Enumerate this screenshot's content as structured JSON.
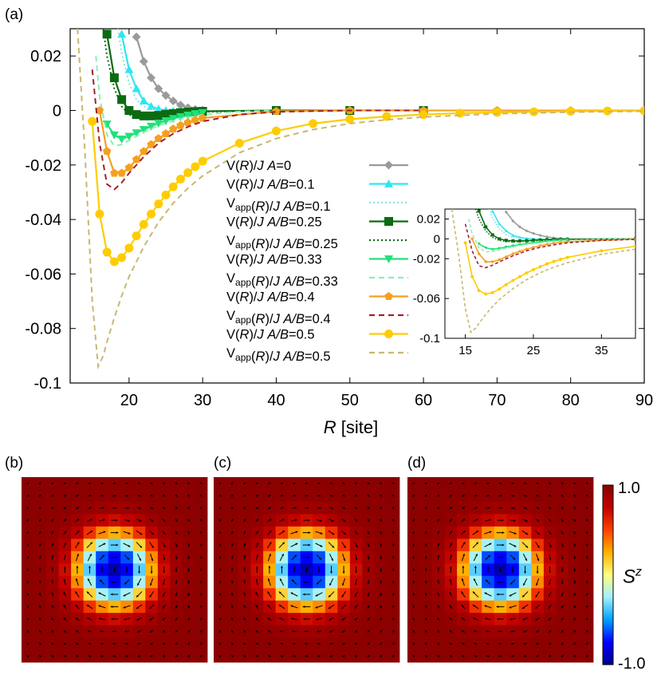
{
  "panel_labels": {
    "a": "(a)",
    "b": "(b)",
    "c": "(c)",
    "d": "(d)"
  },
  "chart_data": [
    {
      "type": "line",
      "xlabel": "R [site]",
      "xlim": [
        12,
        90
      ],
      "ylim": [
        -0.1,
        0.03
      ],
      "xticks": [
        20,
        30,
        40,
        50,
        60,
        70,
        80,
        90
      ],
      "yticks": [
        -0.1,
        -0.08,
        -0.06,
        -0.04,
        -0.02,
        0,
        0.02
      ],
      "ytick_labels": [
        "-0.1",
        "-0.08",
        "-0.06",
        "-0.04",
        "-0.02",
        "0",
        "0.02"
      ],
      "legend_position": "center-right",
      "series": [
        {
          "name": "V(R)/J A=0",
          "color": "#9a9a9a",
          "marker": "diamond",
          "style": "solid",
          "x": [
            21,
            22,
            23,
            24,
            25,
            26,
            27,
            28,
            29,
            30
          ],
          "y": [
            0.027,
            0.018,
            0.012,
            0.008,
            0.0055,
            0.0035,
            0.002,
            0.001,
            0.0004,
            0.0001
          ]
        },
        {
          "name": "V(R)/J A/B=0.1",
          "color": "#2ee6f0",
          "marker": "triangle-up",
          "style": "solid",
          "x": [
            19,
            20,
            21,
            22,
            23,
            24,
            25,
            26,
            27,
            28,
            29,
            30
          ],
          "y": [
            0.028,
            0.015,
            0.008,
            0.0035,
            0.0015,
            0.0005,
            0.0,
            -0.0003,
            -0.0004,
            -0.0004,
            -0.0003,
            -0.0002
          ]
        },
        {
          "name": "Vapp(R)/J A/B=0.1",
          "color": "#7fe6e6",
          "marker": "none",
          "style": "dotted",
          "x": [
            18.5,
            19,
            20,
            21,
            22,
            24,
            26,
            28,
            30
          ],
          "y": [
            0.03,
            0.021,
            0.01,
            0.004,
            0.0015,
            0.0,
            -0.0005,
            -0.0004,
            -0.0002
          ]
        },
        {
          "name": "V(R)/J A/B=0.25",
          "color": "#0b6b12",
          "marker": "square",
          "style": "solid",
          "x": [
            17,
            18,
            19,
            20,
            21,
            22,
            23,
            24,
            25,
            26,
            27,
            28,
            29,
            30,
            40,
            50,
            60
          ],
          "y": [
            0.028,
            0.012,
            0.004,
            0.0,
            -0.0015,
            -0.002,
            -0.002,
            -0.0018,
            -0.0014,
            -0.0011,
            -0.0008,
            -0.0006,
            -0.0004,
            -0.0003,
            0.0,
            0.0,
            0.0
          ]
        },
        {
          "name": "Vapp(R)/J A/B=0.25",
          "color": "#0b6b12",
          "marker": "none",
          "style": "dotted",
          "x": [
            16.5,
            17,
            18,
            19,
            20,
            21,
            22,
            24,
            26,
            28,
            30,
            40
          ],
          "y": [
            0.03,
            0.02,
            0.008,
            0.0015,
            -0.0015,
            -0.0028,
            -0.003,
            -0.0025,
            -0.0016,
            -0.0009,
            -0.0005,
            0.0
          ]
        },
        {
          "name": "V(R)/J A/B=0.33",
          "color": "#22e07a",
          "marker": "triangle-down",
          "style": "solid",
          "x": [
            17,
            18,
            19,
            20,
            21,
            22,
            23,
            24,
            25,
            26,
            27,
            28,
            29,
            30
          ],
          "y": [
            -0.005,
            -0.009,
            -0.0105,
            -0.0095,
            -0.0082,
            -0.007,
            -0.0058,
            -0.0047,
            -0.0038,
            -0.003,
            -0.0023,
            -0.0017,
            -0.0012,
            -0.0008
          ]
        },
        {
          "name": "Vapp(R)/J A/B=0.33",
          "color": "#8af0b4",
          "marker": "none",
          "style": "dashed",
          "x": [
            15.5,
            16,
            17,
            18,
            19,
            20,
            22,
            24,
            26,
            28,
            30,
            35,
            40
          ],
          "y": [
            0.02,
            0.005,
            -0.009,
            -0.013,
            -0.0125,
            -0.011,
            -0.008,
            -0.0055,
            -0.0038,
            -0.0025,
            -0.0015,
            -0.0004,
            0.0
          ]
        },
        {
          "name": "V(R)/J A/B=0.4",
          "color": "#f5a020",
          "marker": "pentagon",
          "style": "solid",
          "x": [
            16,
            17,
            18,
            19,
            20,
            21,
            22,
            23,
            24,
            25,
            26,
            27,
            28,
            29,
            30,
            40,
            50,
            60,
            70,
            80,
            90
          ],
          "y": [
            0.0,
            -0.015,
            -0.023,
            -0.023,
            -0.021,
            -0.018,
            -0.015,
            -0.0125,
            -0.0103,
            -0.0085,
            -0.0068,
            -0.0055,
            -0.0044,
            -0.0035,
            -0.0028,
            -0.0003,
            0.0,
            0.0,
            0.0,
            0.0,
            0.0
          ]
        },
        {
          "name": "Vapp(R)/J A/B=0.4",
          "color": "#a02030",
          "marker": "none",
          "style": "dashed",
          "x": [
            15,
            16,
            17,
            18,
            19,
            20,
            22,
            24,
            26,
            28,
            30,
            35,
            40,
            50,
            60
          ],
          "y": [
            0.015,
            -0.012,
            -0.027,
            -0.029,
            -0.0265,
            -0.023,
            -0.017,
            -0.012,
            -0.0085,
            -0.006,
            -0.004,
            -0.0015,
            -0.0005,
            0.0,
            0.0
          ]
        },
        {
          "name": "V(R)/J A/B=0.5",
          "color": "#ffcc00",
          "marker": "circle",
          "style": "solid",
          "x": [
            15,
            16,
            17,
            18,
            19,
            20,
            21,
            22,
            23,
            24,
            25,
            26,
            27,
            28,
            29,
            30,
            35,
            40,
            45,
            50,
            55,
            60,
            65,
            70,
            75,
            80,
            85,
            90
          ],
          "y": [
            -0.004,
            -0.038,
            -0.052,
            -0.0555,
            -0.054,
            -0.0505,
            -0.046,
            -0.0418,
            -0.038,
            -0.0343,
            -0.031,
            -0.028,
            -0.0252,
            -0.0228,
            -0.0206,
            -0.0186,
            -0.012,
            -0.0075,
            -0.0048,
            -0.0032,
            -0.0022,
            -0.0015,
            -0.001,
            -0.0007,
            -0.0005,
            -0.0003,
            -0.0002,
            -0.0001
          ]
        },
        {
          "name": "Vapp(R)/J A/B=0.5",
          "color": "#c8b870",
          "marker": "none",
          "style": "dashed",
          "x": [
            13,
            14,
            15,
            15.8,
            16.5,
            17,
            18,
            19,
            20,
            22,
            24,
            26,
            28,
            30,
            35,
            40,
            45,
            50,
            55,
            60,
            70,
            80,
            90
          ],
          "y": [
            0.03,
            -0.015,
            -0.07,
            -0.094,
            -0.09,
            -0.085,
            -0.076,
            -0.068,
            -0.061,
            -0.05,
            -0.041,
            -0.034,
            -0.0285,
            -0.024,
            -0.0155,
            -0.0103,
            -0.007,
            -0.0048,
            -0.0034,
            -0.0024,
            -0.0012,
            -0.0006,
            -0.0003
          ]
        }
      ],
      "inset": {
        "xlim": [
          12,
          40
        ],
        "ylim": [
          -0.1,
          0.03
        ],
        "xticks": [
          15,
          25,
          35
        ],
        "yticks": [
          -0.1,
          -0.06,
          -0.02,
          0,
          0.02
        ],
        "ytick_labels": [
          "-0.1",
          "-0.06",
          "-0.02",
          "0",
          "0.02"
        ]
      }
    },
    {
      "type": "heatmap",
      "description_panels": [
        "b",
        "c",
        "d"
      ],
      "colorbar": {
        "label": "S",
        "label_sup": "z",
        "min": -1.0,
        "max": 1.0,
        "min_label": "-1.0",
        "max_label": "1.0"
      },
      "colormap": [
        "#00008b",
        "#0000ff",
        "#00a0ff",
        "#a0f0ff",
        "#ffff80",
        "#ffb000",
        "#ff4000",
        "#c00000",
        "#8b0000"
      ]
    }
  ]
}
